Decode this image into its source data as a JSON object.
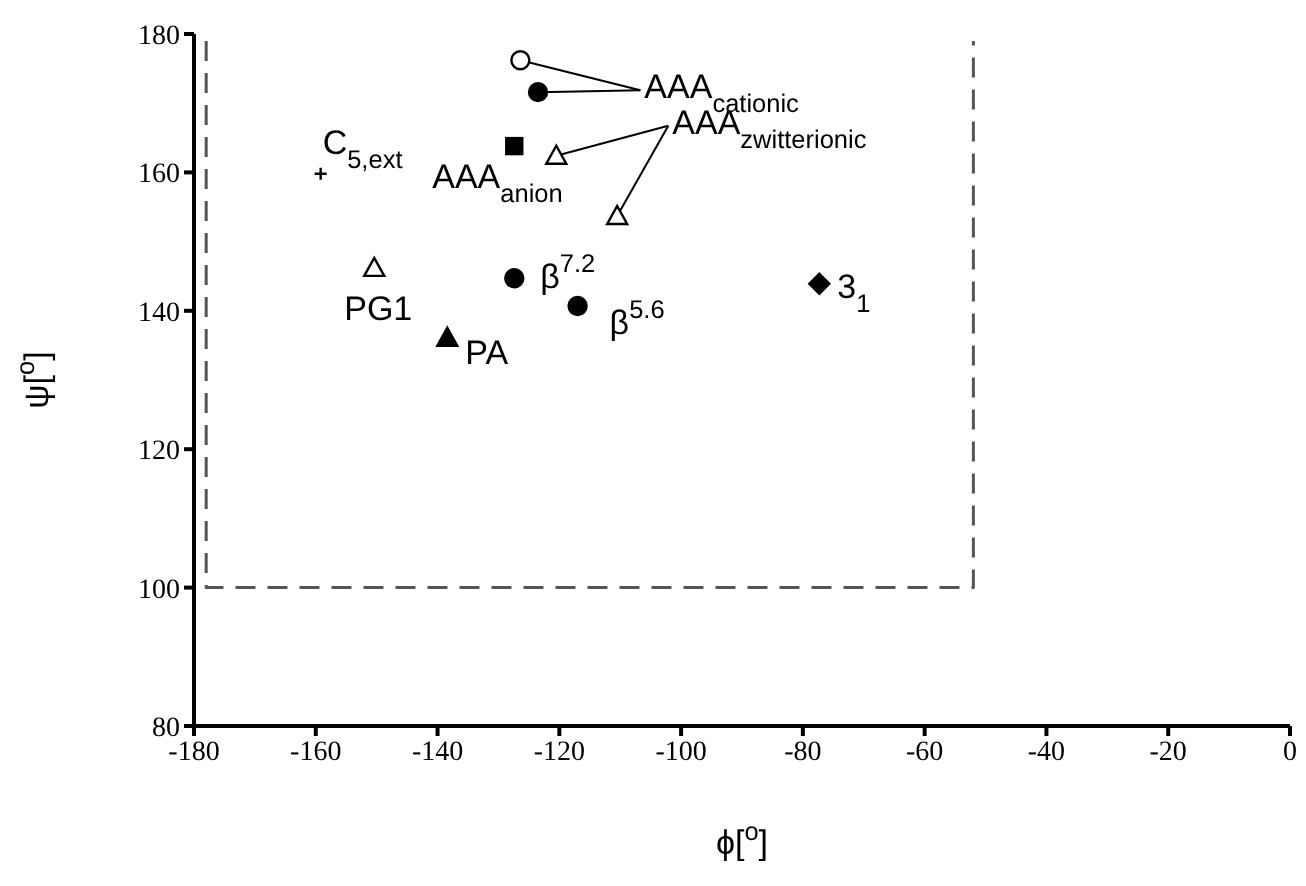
{
  "chart_data": {
    "type": "scatter",
    "xlabel": "ϕ[$^{o}$]",
    "ylabel": "ψ[$^{o}$]",
    "xlim": [
      -180,
      0
    ],
    "xticks": [
      -180,
      -160,
      -140,
      -120,
      -100,
      -80,
      -60,
      -40,
      -20,
      0
    ],
    "ylim": [
      80,
      180
    ],
    "yticks": [
      80,
      100,
      120,
      140,
      160,
      180
    ],
    "series": [
      {
        "x": [
          -126.4
        ],
        "values": [
          176.2
        ],
        "marker": "circle",
        "color": "#ffffff"
      },
      {
        "x": [
          -123.5
        ],
        "values": [
          171.6
        ],
        "marker": "circle",
        "color": "#000000"
      },
      {
        "x": [
          -127.4
        ],
        "values": [
          163.8
        ],
        "marker": "square",
        "color": "#000000"
      },
      {
        "x": [
          -120.5
        ],
        "values": [
          162.4
        ],
        "marker": "triangle",
        "color": "#ffffff"
      },
      {
        "x": [
          -110.5
        ],
        "values": [
          153.7
        ],
        "marker": "triangle",
        "color": "#ffffff"
      },
      {
        "x": [
          -159.2
        ],
        "values": [
          159.8
        ],
        "marker": "cross",
        "color": "#000000"
      },
      {
        "x": [
          -150.4
        ],
        "values": [
          146.2
        ],
        "marker": "triangle",
        "color": "#ffffff"
      },
      {
        "x": [
          -138.4
        ],
        "values": [
          136.1
        ],
        "marker": "triangle",
        "color": "#000000"
      },
      {
        "x": [
          -127.4
        ],
        "values": [
          144.7
        ],
        "marker": "circle",
        "color": "#000000"
      },
      {
        "x": [
          -117
        ],
        "values": [
          140.7
        ],
        "marker": "circle",
        "color": "#000000"
      },
      {
        "x": [
          -77.3
        ],
        "values": [
          143.9
        ],
        "marker": "diamond",
        "color": "#000000"
      },
      {
        "type": "line",
        "x": [
          -178,
          -178,
          -52,
          -52
        ],
        "values": [
          179,
          100,
          100,
          179
        ],
        "line_style": "dashed",
        "marker": "none",
        "color": "#555555"
      }
    ],
    "annotations": [
      {
        "text": "AAA$_{cationic}$",
        "x": -126.4,
        "y": 176.2
      },
      {
        "text": "AAA$_{zwitterionic}$",
        "x": -120.5,
        "y": 162.4
      },
      {
        "text": "C$_{5,ext}$",
        "x": -159.2,
        "y": 159.8
      },
      {
        "text": "AAA$_{anion}$",
        "x": -127.4,
        "y": 163.8
      },
      {
        "text": "PG1",
        "x": -150.4,
        "y": 146.2
      },
      {
        "text": "PA",
        "x": -138.4,
        "y": 136.1
      },
      {
        "text": "β$^{7.2}$",
        "x": -127.4,
        "y": 144.7
      },
      {
        "text": "β$^{5.6}$",
        "x": -117,
        "y": 140.7
      },
      {
        "text": "3$_{1}$",
        "x": -77.3,
        "y": 143.9
      }
    ]
  }
}
